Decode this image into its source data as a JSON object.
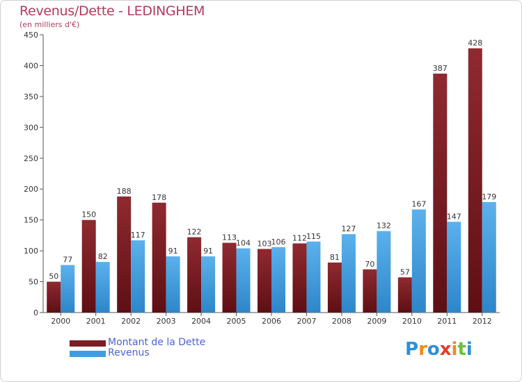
{
  "header": {
    "title": "Revenus/Dette - LEDINGHEM",
    "subtitle": "(en milliers d'€)"
  },
  "legend": {
    "debt_label": "Montant de la Dette",
    "revenue_label": "Revenus"
  },
  "logo": {
    "letters": [
      "P",
      "r",
      "o",
      "x",
      "i",
      "t",
      "i"
    ],
    "colors": [
      "#2e8fd8",
      "#f08a1d",
      "#2e8fd8",
      "#e83a2f",
      "#f08a1d",
      "#6cbf3a",
      "#2e8fd8"
    ]
  },
  "colors": {
    "debt": "#7a1e24",
    "debt_light": "#8f2a30",
    "revenue": "#3f9de0",
    "revenue_light": "#5bb1ec"
  },
  "chart_data": {
    "type": "bar",
    "categories": [
      "2000",
      "2001",
      "2002",
      "2003",
      "2004",
      "2005",
      "2006",
      "2007",
      "2008",
      "2009",
      "2010",
      "2011",
      "2012"
    ],
    "series": [
      {
        "name": "Montant de la Dette",
        "values": [
          50,
          150,
          188,
          178,
          122,
          113,
          103,
          112,
          81,
          70,
          57,
          387,
          428
        ]
      },
      {
        "name": "Revenus",
        "values": [
          77,
          82,
          117,
          91,
          91,
          104,
          106,
          115,
          127,
          132,
          167,
          147,
          179
        ]
      }
    ],
    "yticks": [
      0,
      50,
      100,
      150,
      200,
      250,
      300,
      350,
      400,
      450
    ],
    "ylim": [
      0,
      450
    ],
    "grid": false,
    "legend_position": "bottom-left"
  }
}
